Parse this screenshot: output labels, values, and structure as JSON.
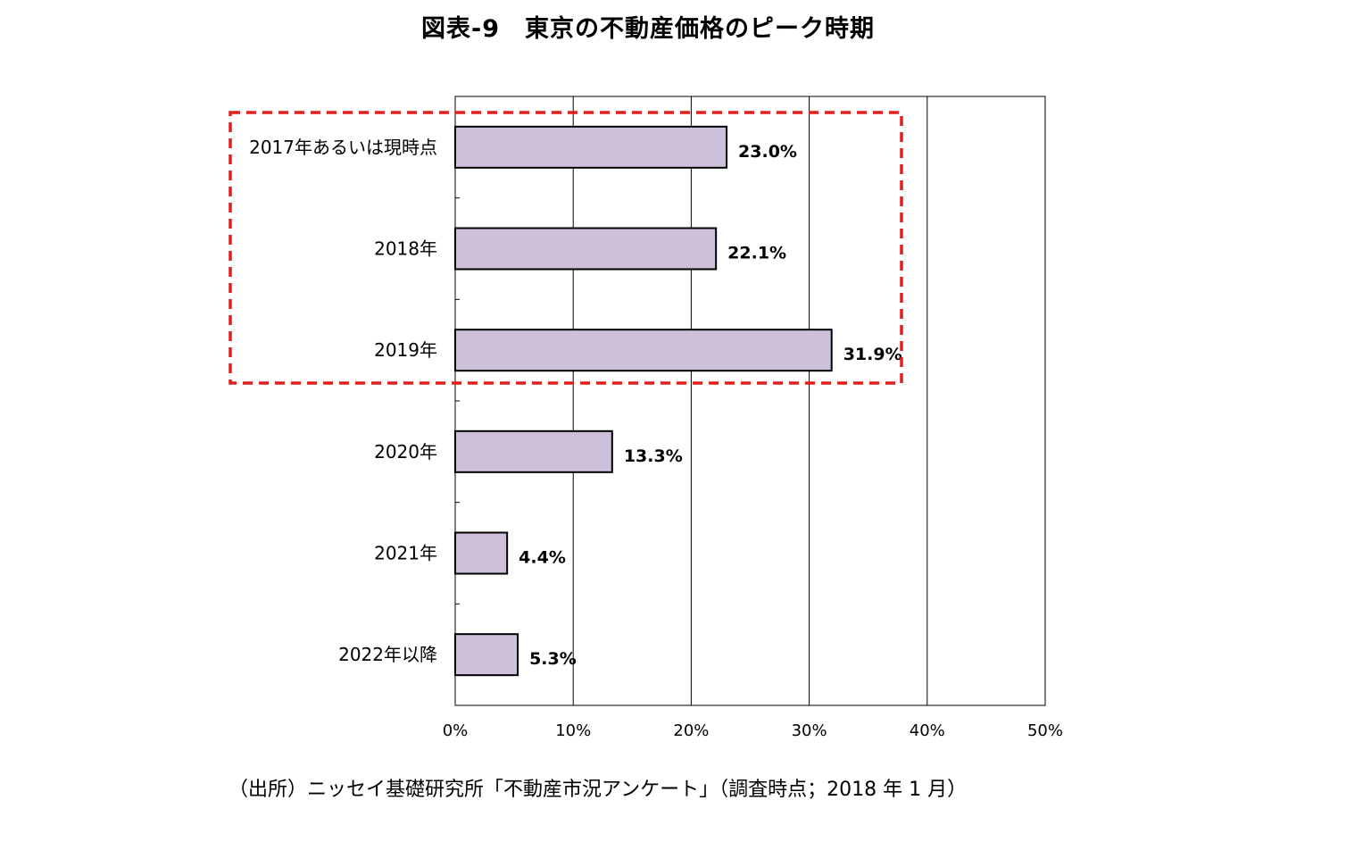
{
  "chart_data": {
    "type": "bar",
    "orientation": "horizontal",
    "title": "図表-9　東京の不動産価格のピーク時期",
    "categories": [
      "2017年あるいは現時点",
      "2018年",
      "2019年",
      "2020年",
      "2021年",
      "2022年以降"
    ],
    "values": [
      23.0,
      22.1,
      31.9,
      13.3,
      4.4,
      5.3
    ],
    "value_labels": [
      "23.0%",
      "22.1%",
      "31.9%",
      "13.3%",
      "4.4%",
      "5.3%"
    ],
    "xlim": [
      0,
      50
    ],
    "x_ticks": [
      0,
      10,
      20,
      30,
      40,
      50
    ],
    "x_tick_labels": [
      "0%",
      "10%",
      "20%",
      "30%",
      "40%",
      "50%"
    ],
    "xlabel": "",
    "ylabel": "",
    "grid": "vertical",
    "legend": "none",
    "highlight": {
      "categories": [
        "2017年あるいは現時点",
        "2018年",
        "2019年"
      ],
      "style": "red-dashed-box"
    },
    "source": "（出所）ニッセイ基礎研究所「不動産市況アンケート」（調査時点；2018 年 1 月）",
    "colors": {
      "bar_fill": "#ccc0da",
      "bar_stroke": "#000000",
      "highlight": "#e02020",
      "grid": "#000000"
    }
  }
}
